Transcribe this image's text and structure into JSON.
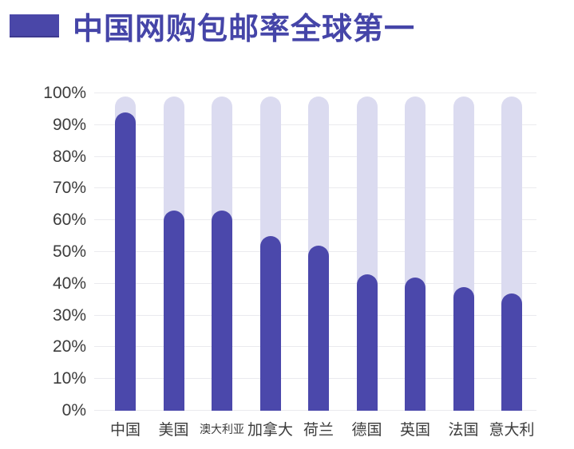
{
  "header": {
    "title": "中国网购包邮率全球第一"
  },
  "chart_data": {
    "type": "bar",
    "title": "中国网购包邮率全球第一",
    "categories": [
      "中国",
      "美国",
      "澳大利亚",
      "加拿大",
      "荷兰",
      "德国",
      "英国",
      "法国",
      "意大利"
    ],
    "values": [
      94,
      63,
      63,
      55,
      52,
      43,
      42,
      39,
      37
    ],
    "unit": "%",
    "xlabel": "",
    "ylabel": "",
    "ylim": [
      0,
      100
    ],
    "yticks": [
      0,
      10,
      20,
      30,
      40,
      50,
      60,
      70,
      80,
      90,
      100
    ],
    "ytick_labels": [
      "0%",
      "10%",
      "20%",
      "30%",
      "40%",
      "50%",
      "60%",
      "70%",
      "80%",
      "90%",
      "100%"
    ],
    "grid": "horizontal",
    "legend_position": "none",
    "track_full_height": true,
    "colors": {
      "bar_fill": "#4B48AB",
      "bar_track": "#DBDBF0",
      "gridline": "#EAEAEE",
      "axis_text": "#3C3C3C",
      "title_text": "#4545A8",
      "title_marker": "#4A47A8",
      "background": "#FFFFFF"
    }
  }
}
